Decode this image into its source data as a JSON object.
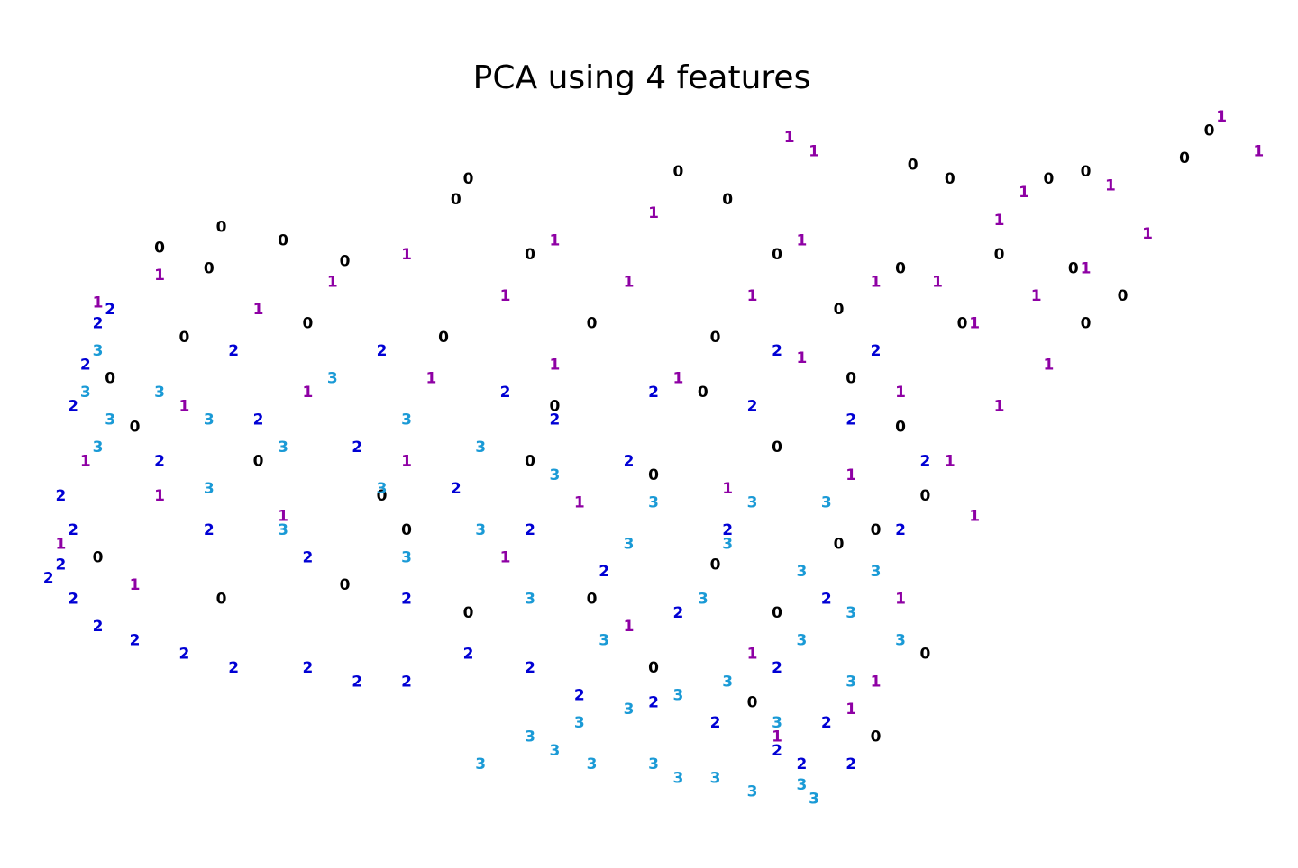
{
  "chart_data": {
    "type": "scatter",
    "title": "PCA using 4 features",
    "xlim": [
      0,
      100
    ],
    "ylim": [
      0,
      100
    ],
    "series": [
      {
        "name": "0",
        "color": "#000000",
        "x": [
          95,
          93,
          82,
          85,
          74,
          71,
          52,
          56,
          35,
          34,
          15,
          20,
          10,
          14,
          25,
          40,
          60,
          70,
          78,
          84,
          88,
          85,
          75,
          65,
          55,
          45,
          33,
          22,
          12,
          6,
          8,
          18,
          28,
          40,
          50,
          60,
          70,
          72,
          65,
          55,
          45,
          35,
          25,
          15,
          5,
          30,
          50,
          58,
          68,
          72,
          60,
          42,
          68,
          54,
          66
        ],
        "values": [
          98,
          94,
          91,
          92,
          91,
          93,
          92,
          88,
          91,
          88,
          84,
          82,
          81,
          78,
          79,
          80,
          80,
          78,
          80,
          78,
          74,
          70,
          70,
          72,
          68,
          70,
          68,
          70,
          68,
          62,
          55,
          50,
          45,
          50,
          48,
          52,
          55,
          45,
          38,
          35,
          30,
          28,
          32,
          30,
          36,
          40,
          20,
          15,
          10,
          22,
          28,
          58,
          40,
          60,
          62
        ]
      },
      {
        "name": "1",
        "color": "#8e00a4",
        "x": [
          99,
          96,
          61,
          63,
          80,
          78,
          87,
          90,
          85,
          81,
          73,
          62,
          50,
          42,
          30,
          24,
          10,
          5,
          18,
          38,
          48,
          58,
          68,
          76,
          82,
          78,
          70,
          62,
          52,
          42,
          32,
          22,
          12,
          4,
          10,
          20,
          30,
          44,
          56,
          66,
          74,
          76,
          70,
          68,
          66,
          58,
          48,
          38,
          8,
          2,
          60
        ],
        "values": [
          95,
          100,
          97,
          95,
          89,
          85,
          90,
          83,
          78,
          74,
          76,
          82,
          86,
          82,
          80,
          76,
          77,
          73,
          72,
          74,
          76,
          74,
          76,
          70,
          64,
          58,
          60,
          65,
          62,
          64,
          62,
          60,
          58,
          50,
          45,
          42,
          50,
          44,
          46,
          48,
          50,
          42,
          30,
          18,
          14,
          22,
          26,
          36,
          32,
          38,
          10
        ]
      },
      {
        "name": "2",
        "color": "#0000d4",
        "x": [
          6,
          5,
          4,
          3,
          2,
          3,
          2,
          1,
          3,
          5,
          8,
          12,
          16,
          22,
          26,
          30,
          35,
          40,
          44,
          50,
          55,
          60,
          62,
          66,
          64,
          60,
          52,
          46,
          40,
          34,
          26,
          18,
          10,
          14,
          22,
          30,
          42,
          50,
          58,
          66,
          72,
          70,
          64,
          56,
          48,
          38,
          28,
          16,
          60,
          68
        ],
        "values": [
          72,
          70,
          64,
          58,
          45,
          40,
          35,
          33,
          30,
          26,
          24,
          22,
          20,
          20,
          18,
          18,
          22,
          20,
          16,
          15,
          12,
          8,
          6,
          6,
          12,
          20,
          28,
          34,
          40,
          46,
          52,
          56,
          50,
          40,
          36,
          30,
          56,
          60,
          58,
          56,
          50,
          40,
          30,
          40,
          50,
          60,
          66,
          66,
          66,
          66
        ]
      },
      {
        "name": "3",
        "color": "#1a9ad6",
        "x": [
          5,
          4,
          6,
          5,
          10,
          14,
          20,
          24,
          30,
          36,
          42,
          50,
          56,
          62,
          66,
          62,
          56,
          52,
          48,
          44,
          42,
          40,
          36,
          45,
          50,
          55,
          58,
          62,
          63,
          52,
          60,
          66,
          70,
          68,
          58,
          48,
          40,
          30,
          20,
          14,
          28,
          36,
          46,
          54,
          64
        ],
        "values": [
          66,
          60,
          56,
          52,
          60,
          56,
          52,
          62,
          56,
          52,
          48,
          44,
          38,
          34,
          28,
          24,
          18,
          16,
          14,
          12,
          8,
          10,
          6,
          6,
          6,
          4,
          2,
          3,
          1,
          4,
          12,
          18,
          24,
          34,
          44,
          38,
          30,
          36,
          40,
          46,
          46,
          40,
          24,
          30,
          44
        ]
      }
    ]
  }
}
